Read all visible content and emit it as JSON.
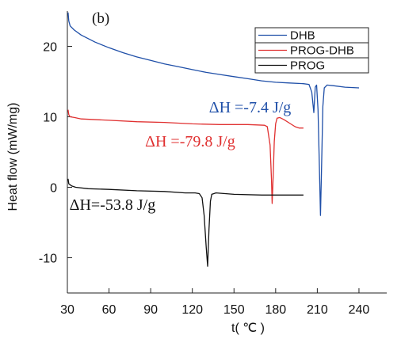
{
  "chart_data": {
    "type": "line",
    "panel_label": "(b)",
    "xlabel": "t( ℃ )",
    "ylabel": "Heat flow (mW/mg)",
    "xlim": [
      30,
      260
    ],
    "ylim": [
      -15,
      25
    ],
    "x_ticks": [
      30,
      60,
      90,
      120,
      150,
      180,
      210,
      240
    ],
    "y_ticks": [
      20,
      10,
      0,
      -10
    ],
    "grid": false,
    "legend_position": "top-right",
    "series": [
      {
        "name": "DHB",
        "color": "#1f4fa8",
        "points": [
          [
            30.5,
            24.8
          ],
          [
            31,
            23.6
          ],
          [
            32,
            22.9
          ],
          [
            35,
            22.3
          ],
          [
            40,
            21.6
          ],
          [
            50,
            20.6
          ],
          [
            60,
            19.8
          ],
          [
            70,
            19.1
          ],
          [
            80,
            18.5
          ],
          [
            90,
            18.0
          ],
          [
            100,
            17.5
          ],
          [
            110,
            17.1
          ],
          [
            120,
            16.7
          ],
          [
            130,
            16.3
          ],
          [
            140,
            16.0
          ],
          [
            150,
            15.7
          ],
          [
            160,
            15.4
          ],
          [
            170,
            15.1
          ],
          [
            180,
            14.9
          ],
          [
            190,
            14.8
          ],
          [
            200,
            14.7
          ],
          [
            204,
            14.6
          ],
          [
            206,
            13.5
          ],
          [
            207.5,
            10.6
          ],
          [
            208.5,
            14.2
          ],
          [
            209.5,
            14.5
          ],
          [
            210.5,
            11.0
          ],
          [
            211.5,
            3.0
          ],
          [
            212.3,
            -4.0
          ],
          [
            213,
            2.0
          ],
          [
            214,
            11.5
          ],
          [
            215,
            14.1
          ],
          [
            217,
            14.5
          ],
          [
            222,
            14.4
          ],
          [
            230,
            14.2
          ],
          [
            240,
            14.1
          ]
        ]
      },
      {
        "name": "PROG-DHB",
        "color": "#e03030",
        "points": [
          [
            30.5,
            11.0
          ],
          [
            31,
            10.3
          ],
          [
            32,
            10.0
          ],
          [
            35,
            9.9
          ],
          [
            40,
            9.7
          ],
          [
            60,
            9.5
          ],
          [
            80,
            9.3
          ],
          [
            100,
            9.2
          ],
          [
            120,
            9.0
          ],
          [
            140,
            8.9
          ],
          [
            160,
            8.9
          ],
          [
            172,
            8.8
          ],
          [
            174,
            8.6
          ],
          [
            176,
            6.0
          ],
          [
            177,
            1.0
          ],
          [
            177.5,
            -2.3
          ],
          [
            178.2,
            1.5
          ],
          [
            179,
            6.5
          ],
          [
            180,
            9.0
          ],
          [
            181,
            9.8
          ],
          [
            183,
            9.9
          ],
          [
            186,
            9.6
          ],
          [
            190,
            9.1
          ],
          [
            194,
            8.6
          ],
          [
            197,
            8.4
          ],
          [
            200,
            8.4
          ]
        ]
      },
      {
        "name": "PROG",
        "color": "#111111",
        "points": [
          [
            30.5,
            1.2
          ],
          [
            31,
            0.5
          ],
          [
            33,
            0.2
          ],
          [
            36,
            0.0
          ],
          [
            45,
            -0.2
          ],
          [
            60,
            -0.3
          ],
          [
            80,
            -0.5
          ],
          [
            100,
            -0.6
          ],
          [
            115,
            -0.8
          ],
          [
            122,
            -0.8
          ],
          [
            125,
            -0.9
          ],
          [
            127,
            -1.5
          ],
          [
            128.5,
            -4.0
          ],
          [
            130,
            -8.5
          ],
          [
            131,
            -11.2
          ],
          [
            132,
            -6.0
          ],
          [
            133,
            -2.0
          ],
          [
            134,
            -1.0
          ],
          [
            137,
            -0.8
          ],
          [
            150,
            -1.0
          ],
          [
            170,
            -1.1
          ],
          [
            185,
            -1.1
          ],
          [
            200,
            -1.1
          ]
        ]
      }
    ],
    "annotations": [
      {
        "text": "ΔH =-7.4 J/g",
        "series": "DHB",
        "x": 132,
        "y": 10.6
      },
      {
        "text": "ΔH =-79.8 J/g",
        "series": "PROG-DHB",
        "x": 86,
        "y": 5.8
      },
      {
        "text": "ΔH=-53.8 J/g",
        "series": "PROG",
        "x": 31.5,
        "y": -3.2
      }
    ]
  }
}
